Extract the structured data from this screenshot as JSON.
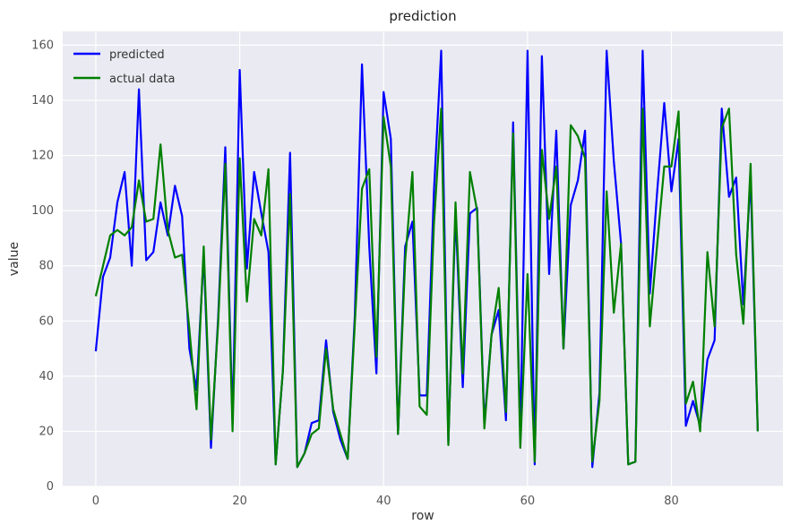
{
  "chart_data": {
    "type": "line",
    "title": "prediction",
    "xlabel": "row",
    "ylabel": "value",
    "xlim": [
      -4.6,
      95.5
    ],
    "ylim": [
      0,
      165
    ],
    "xticks": [
      0,
      20,
      40,
      60,
      80
    ],
    "yticks": [
      0,
      20,
      40,
      60,
      80,
      100,
      120,
      140,
      160
    ],
    "grid": true,
    "legend_position": "top-left",
    "series": [
      {
        "name": "predicted",
        "color": "#0000ff",
        "x": [
          0,
          1,
          2,
          3,
          4,
          5,
          6,
          7,
          8,
          9,
          10,
          11,
          12,
          13,
          14,
          15,
          16,
          17,
          18,
          19,
          20,
          21,
          22,
          23,
          24,
          25,
          26,
          27,
          28,
          29,
          30,
          31,
          32,
          33,
          34,
          35,
          36,
          37,
          38,
          39,
          40,
          41,
          42,
          43,
          44,
          45,
          46,
          47,
          48,
          49,
          50,
          51,
          52,
          53,
          54,
          55,
          56,
          57,
          58,
          59,
          60,
          61,
          62,
          63,
          64,
          65,
          66,
          67,
          68,
          69,
          70,
          71,
          72,
          73,
          74,
          75,
          76,
          77,
          78,
          79,
          80,
          81,
          82,
          83,
          84,
          85,
          86,
          87,
          88,
          89,
          90,
          91,
          92
        ],
        "values": [
          49,
          76,
          83,
          103,
          114,
          80,
          144,
          82,
          85,
          103,
          91,
          109,
          98,
          50,
          35,
          84,
          14,
          61,
          123,
          23,
          151,
          79,
          114,
          99,
          85,
          8,
          42,
          121,
          7,
          12,
          23,
          24,
          53,
          27,
          17,
          10,
          62,
          153,
          87,
          41,
          143,
          126,
          19,
          87,
          96,
          33,
          33,
          107,
          158,
          16,
          99,
          36,
          99,
          101,
          23,
          55,
          64,
          24,
          132,
          18,
          158,
          8,
          156,
          77,
          129,
          50,
          102,
          111,
          129,
          7,
          34,
          158,
          118,
          88,
          8,
          9,
          158,
          70,
          106,
          139,
          107,
          126,
          22,
          31,
          22,
          46,
          53,
          137,
          105,
          112,
          66,
          112,
          20
        ]
      },
      {
        "name": "actual data",
        "color": "#008000",
        "x": [
          0,
          1,
          2,
          3,
          4,
          5,
          6,
          7,
          8,
          9,
          10,
          11,
          12,
          13,
          14,
          15,
          16,
          17,
          18,
          19,
          20,
          21,
          22,
          23,
          24,
          25,
          26,
          27,
          28,
          29,
          30,
          31,
          32,
          33,
          34,
          35,
          36,
          37,
          38,
          39,
          40,
          41,
          42,
          43,
          44,
          45,
          46,
          47,
          48,
          49,
          50,
          51,
          52,
          53,
          54,
          55,
          56,
          57,
          58,
          59,
          60,
          61,
          62,
          63,
          64,
          65,
          66,
          67,
          68,
          69,
          70,
          71,
          72,
          73,
          74,
          75,
          76,
          77,
          78,
          79,
          80,
          81,
          82,
          83,
          84,
          85,
          86,
          87,
          88,
          89,
          90,
          91,
          92
        ],
        "values": [
          69,
          80,
          91,
          93,
          91,
          94,
          111,
          96,
          97,
          124,
          93,
          83,
          84,
          57,
          28,
          87,
          17,
          59,
          117,
          20,
          119,
          67,
          97,
          91,
          115,
          8,
          42,
          106,
          7,
          12,
          19,
          21,
          50,
          28,
          19,
          10,
          59,
          108,
          115,
          47,
          134,
          116,
          19,
          82,
          114,
          29,
          26,
          95,
          137,
          15,
          103,
          41,
          114,
          100,
          21,
          55,
          72,
          27,
          128,
          14,
          77,
          9,
          122,
          97,
          116,
          50,
          131,
          127,
          119,
          9,
          31,
          107,
          63,
          88,
          8,
          9,
          137,
          58,
          87,
          116,
          116,
          136,
          30,
          38,
          20,
          85,
          58,
          130,
          137,
          84,
          59,
          117,
          20
        ]
      }
    ]
  }
}
